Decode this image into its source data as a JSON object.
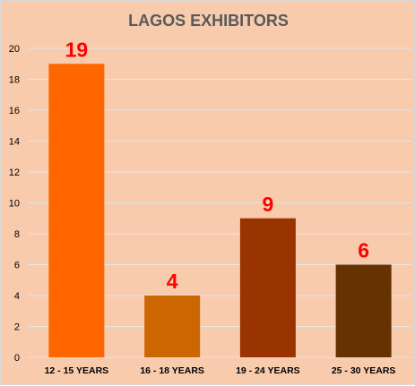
{
  "chart_data": {
    "type": "bar",
    "title": "LAGOS EXHIBITORS",
    "categories": [
      "12 - 15 YEARS",
      "16 - 18 YEARS",
      "19 - 24 YEARS",
      "25 - 30 YEARS"
    ],
    "values": [
      19,
      4,
      9,
      6
    ],
    "data_labels": [
      "19",
      "4",
      "9",
      "6"
    ],
    "bar_colors": [
      "#ff6600",
      "#cc6600",
      "#993300",
      "#663300"
    ],
    "data_label_color": "#ff0000",
    "xlabel": "",
    "ylabel": "",
    "ylim": [
      0,
      20
    ],
    "yticks": [
      "0",
      "2",
      "4",
      "6",
      "8",
      "10",
      "12",
      "14",
      "16",
      "18",
      "20"
    ],
    "grid": true,
    "legend": "none",
    "background_color": "#f8cbad",
    "gridline_color": "#e6e6e6"
  }
}
